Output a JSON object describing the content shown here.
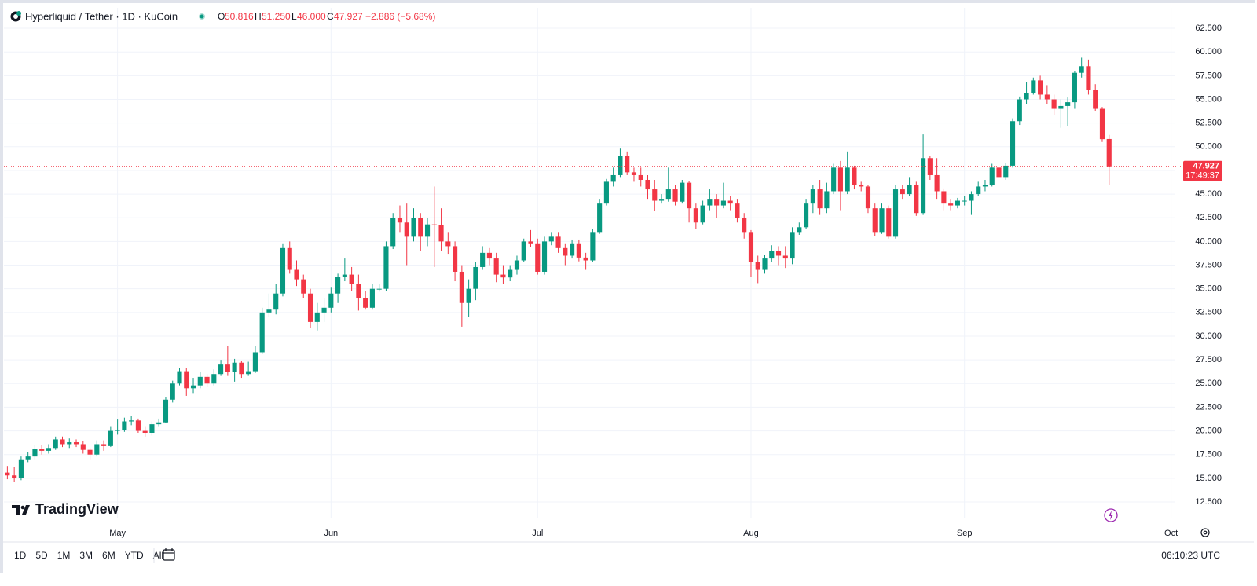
{
  "chart_data": {
    "type": "candlestick",
    "title": "Hyperliquid / Tether · 1D · KuCoin",
    "legend": {
      "o_key": "O",
      "o": "50.816",
      "h_key": "H",
      "h": "51.250",
      "l_key": "L",
      "l": "46.000",
      "c_key": "C",
      "c": "47.927",
      "change": "−2.886 (−5.68%)"
    },
    "up_color": "#089981",
    "down_color": "#f23645",
    "grid": true,
    "categories": [
      null,
      null,
      null,
      null,
      null,
      null,
      null,
      null,
      null,
      null,
      null,
      null,
      null,
      null,
      null,
      null,
      "May",
      null,
      null,
      null,
      null,
      null,
      null,
      null,
      null,
      null,
      null,
      null,
      null,
      null,
      null,
      null,
      null,
      null,
      null,
      null,
      null,
      null,
      null,
      null,
      null,
      null,
      null,
      null,
      null,
      null,
      null,
      "Jun",
      null,
      null,
      null,
      null,
      null,
      null,
      null,
      null,
      null,
      null,
      null,
      null,
      null,
      null,
      null,
      null,
      null,
      null,
      null,
      null,
      null,
      null,
      null,
      null,
      null,
      null,
      null,
      null,
      null,
      "Jul",
      null,
      null,
      null,
      null,
      null,
      null,
      null,
      null,
      null,
      null,
      null,
      null,
      null,
      null,
      null,
      null,
      null,
      null,
      null,
      null,
      null,
      null,
      null,
      null,
      null,
      null,
      null,
      null,
      null,
      null,
      "Aug",
      null,
      null,
      null,
      null,
      null,
      null,
      null,
      null,
      null,
      null,
      null,
      null,
      null,
      null,
      null,
      null,
      null,
      null,
      null,
      null,
      null,
      null,
      null,
      null,
      null,
      null,
      null,
      null,
      null,
      null,
      "Sep",
      null,
      null,
      null,
      null,
      null,
      null,
      null,
      null,
      null,
      null,
      null,
      null,
      null,
      null,
      null,
      null,
      null,
      null,
      null,
      null,
      null,
      null,
      null,
      null,
      null,
      null,
      null,
      null,
      null,
      "Oct"
    ],
    "series": [
      {
        "open": [
          15.6,
          15.3,
          15.0,
          17.0,
          17.3,
          18.1,
          17.9,
          18.2,
          19.1,
          18.6,
          18.8,
          18.6,
          18.0,
          17.5,
          18.6,
          18.4,
          20.0,
          20.1,
          21.0,
          21.1,
          20.0,
          19.8,
          20.7,
          20.9,
          23.3,
          25.0,
          26.3,
          24.5,
          24.8,
          25.7,
          25.0,
          26.0,
          27.0,
          26.2,
          27.2,
          26.0,
          26.3,
          28.3,
          32.5,
          32.8,
          34.5,
          39.3,
          37.0,
          36.0,
          34.5,
          31.5,
          32.5,
          33.0,
          34.5,
          36.3,
          36.5,
          35.5,
          34.0,
          33.0,
          35.0,
          35.0,
          39.5,
          42.5,
          42.0,
          40.5,
          42.5,
          40.5,
          41.8,
          41.7,
          40.0,
          39.5,
          36.8,
          33.5,
          35.0,
          37.3,
          38.8,
          38.2,
          36.5,
          36.2,
          37.0,
          38.0,
          40.0,
          39.8,
          36.8,
          40.0,
          40.5,
          39.3,
          38.5,
          39.8,
          38.3,
          38.0,
          41.0,
          44.0,
          46.3,
          47.0,
          49.0,
          47.3,
          47.0,
          46.5,
          45.5,
          44.3,
          44.5,
          45.5,
          44.2,
          46.2,
          43.5,
          42.0,
          43.8,
          44.5,
          43.8,
          44.3,
          44.0,
          42.5,
          41.0,
          37.8,
          37.0,
          38.2,
          39.0,
          38.5,
          38.2,
          41.0,
          41.5,
          44.0,
          45.5,
          43.5,
          45.3,
          47.8,
          45.3,
          47.8,
          46.0,
          45.8,
          43.5,
          41.0,
          43.5,
          40.5,
          45.5,
          45.0,
          46.0,
          43.0,
          48.8,
          47.0,
          45.3,
          44.0,
          43.8,
          44.3,
          44.3,
          45.0,
          45.8,
          46.0,
          47.8,
          46.8,
          48.0,
          52.7,
          55.0,
          55.7,
          57.0,
          55.5,
          55.0,
          54.0,
          54.3,
          54.7,
          57.8,
          58.5,
          56.0,
          54.0,
          50.816,
          null,
          null,
          null,
          null,
          null,
          null,
          null,
          null,
          null
        ],
        "high": [
          16.3,
          16.2,
          17.3,
          17.8,
          18.5,
          18.5,
          18.6,
          19.4,
          19.4,
          19.2,
          19.1,
          18.9,
          18.2,
          19.0,
          19.0,
          20.5,
          21.2,
          21.4,
          21.6,
          21.3,
          20.5,
          21.0,
          21.3,
          23.6,
          25.3,
          26.6,
          26.6,
          25.6,
          26.2,
          26.0,
          26.5,
          27.5,
          29.0,
          27.6,
          27.4,
          27.3,
          29.0,
          33.0,
          34.5,
          35.5,
          39.8,
          40.0,
          38.0,
          36.5,
          35.0,
          33.5,
          34.0,
          35.2,
          36.6,
          38.2,
          37.3,
          36.5,
          34.8,
          35.5,
          35.5,
          40.0,
          43.0,
          43.8,
          44.0,
          43.5,
          43.0,
          42.5,
          45.8,
          43.5,
          41.0,
          40.0,
          37.5,
          36.0,
          37.8,
          39.5,
          39.3,
          38.8,
          37.5,
          37.5,
          38.5,
          40.3,
          41.2,
          40.3,
          40.5,
          41.0,
          41.0,
          39.8,
          40.2,
          40.2,
          38.8,
          41.3,
          44.5,
          46.6,
          47.8,
          49.8,
          49.5,
          47.8,
          47.8,
          47.0,
          46.5,
          45.0,
          47.8,
          46.0,
          46.5,
          46.4,
          44.0,
          44.3,
          45.5,
          45.0,
          46.2,
          44.8,
          44.5,
          43.0,
          41.2,
          38.5,
          38.6,
          39.6,
          39.5,
          39.5,
          41.5,
          42.0,
          44.5,
          46.0,
          46.5,
          46.2,
          48.2,
          48.5,
          49.5,
          48.0,
          46.3,
          46.0,
          44.0,
          44.0,
          43.8,
          46.0,
          46.0,
          46.8,
          46.3,
          51.3,
          49.0,
          48.8,
          45.6,
          44.5,
          44.6,
          44.8,
          45.3,
          46.3,
          46.5,
          48.2,
          48.0,
          48.3,
          53.0,
          55.3,
          56.8,
          57.3,
          57.5,
          56.5,
          55.5,
          55.0,
          55.2,
          58.0,
          59.4,
          59.2,
          56.6,
          54.2,
          51.25,
          null,
          null,
          null,
          null,
          null,
          null,
          null,
          null,
          null
        ],
        "low": [
          14.9,
          14.6,
          14.8,
          16.7,
          17.0,
          17.5,
          17.6,
          18.0,
          18.3,
          18.2,
          18.3,
          17.6,
          17.0,
          17.3,
          17.9,
          18.3,
          19.6,
          19.9,
          20.6,
          19.8,
          19.4,
          19.5,
          20.5,
          20.8,
          23.0,
          24.8,
          23.7,
          24.0,
          24.5,
          24.6,
          24.8,
          25.8,
          25.8,
          25.2,
          25.6,
          25.8,
          26.1,
          28.1,
          32.0,
          32.3,
          34.2,
          36.6,
          35.3,
          34.0,
          30.9,
          30.6,
          31.5,
          32.5,
          33.5,
          35.8,
          34.8,
          32.7,
          32.8,
          32.8,
          34.7,
          34.8,
          39.2,
          41.0,
          37.5,
          40.0,
          39.0,
          39.5,
          37.3,
          39.0,
          38.7,
          35.8,
          31.0,
          32.0,
          33.8,
          37.0,
          37.5,
          35.7,
          35.5,
          35.8,
          36.5,
          37.8,
          39.4,
          36.5,
          36.5,
          39.6,
          38.8,
          37.5,
          38.2,
          37.9,
          37.0,
          37.8,
          40.8,
          43.8,
          45.8,
          46.8,
          47.0,
          46.3,
          45.8,
          44.5,
          43.2,
          44.0,
          44.2,
          43.8,
          44.0,
          42.0,
          41.3,
          41.8,
          43.3,
          42.5,
          43.5,
          43.3,
          42.0,
          40.3,
          36.3,
          35.6,
          36.6,
          37.8,
          37.5,
          37.2,
          37.6,
          40.7,
          41.3,
          43.0,
          42.8,
          43.0,
          45.0,
          43.3,
          45.0,
          45.5,
          45.3,
          43.0,
          40.6,
          40.8,
          40.3,
          40.3,
          44.5,
          44.8,
          42.7,
          42.8,
          46.5,
          44.5,
          43.3,
          43.3,
          43.5,
          43.8,
          42.8,
          44.8,
          45.3,
          45.8,
          46.3,
          46.5,
          47.8,
          52.3,
          54.5,
          55.5,
          55.0,
          54.5,
          53.3,
          52.0,
          52.2,
          54.0,
          57.3,
          55.5,
          53.8,
          50.5,
          46.0,
          null,
          null,
          null,
          null,
          null,
          null,
          null,
          null,
          null
        ],
        "close": [
          15.3,
          15.0,
          17.0,
          17.3,
          18.1,
          17.9,
          18.2,
          19.1,
          18.6,
          18.8,
          18.6,
          18.0,
          17.5,
          18.6,
          18.4,
          20.0,
          20.1,
          21.0,
          21.1,
          20.0,
          19.8,
          20.7,
          20.9,
          23.3,
          25.0,
          26.3,
          24.5,
          24.8,
          25.7,
          25.0,
          26.0,
          27.0,
          26.2,
          27.2,
          26.0,
          26.3,
          28.3,
          32.5,
          32.8,
          34.5,
          39.3,
          37.0,
          36.0,
          34.5,
          31.5,
          32.5,
          33.0,
          34.5,
          36.3,
          36.5,
          35.5,
          34.0,
          33.0,
          35.0,
          35.0,
          39.5,
          42.5,
          42.0,
          40.5,
          42.5,
          40.5,
          41.8,
          41.7,
          40.0,
          39.5,
          36.8,
          33.5,
          35.0,
          37.3,
          38.8,
          38.2,
          36.5,
          36.2,
          37.0,
          38.0,
          40.0,
          39.8,
          36.8,
          40.0,
          40.5,
          39.3,
          38.5,
          39.8,
          38.3,
          38.0,
          41.0,
          44.0,
          46.3,
          47.0,
          49.0,
          47.3,
          47.0,
          46.5,
          45.5,
          44.3,
          44.5,
          45.5,
          44.2,
          46.2,
          43.5,
          42.0,
          43.8,
          44.5,
          43.8,
          44.3,
          44.0,
          42.5,
          41.0,
          37.8,
          37.0,
          38.2,
          39.0,
          38.5,
          38.2,
          41.0,
          41.5,
          44.0,
          45.5,
          43.5,
          45.3,
          47.8,
          45.3,
          47.8,
          46.0,
          45.8,
          43.5,
          41.0,
          43.5,
          40.5,
          45.5,
          45.0,
          46.0,
          43.0,
          48.8,
          47.0,
          45.3,
          44.0,
          43.8,
          44.3,
          44.3,
          45.0,
          45.8,
          46.0,
          47.8,
          46.8,
          48.0,
          52.7,
          55.0,
          55.7,
          57.0,
          55.5,
          55.0,
          54.0,
          54.3,
          54.7,
          57.8,
          58.5,
          56.0,
          54.0,
          50.8,
          47.927,
          null,
          null,
          null,
          null,
          null,
          null,
          null,
          null,
          null
        ]
      }
    ],
    "ylim": [
      10.76,
      64.66
    ],
    "yticks": [
      {
        "value": 12.5,
        "label": "12.500"
      },
      {
        "value": 15,
        "label": "15.000"
      },
      {
        "value": 17.5,
        "label": "17.500"
      },
      {
        "value": 20,
        "label": "20.000"
      },
      {
        "value": 22.5,
        "label": "22.500"
      },
      {
        "value": 25,
        "label": "25.000"
      },
      {
        "value": 27.5,
        "label": "27.500"
      },
      {
        "value": 30,
        "label": "30.000"
      },
      {
        "value": 32.5,
        "label": "32.500"
      },
      {
        "value": 35,
        "label": "35.000"
      },
      {
        "value": 37.5,
        "label": "37.500"
      },
      {
        "value": 40,
        "label": "40.000"
      },
      {
        "value": 42.5,
        "label": "42.500"
      },
      {
        "value": 45,
        "label": "45.000"
      },
      {
        "value": 47.5,
        "label": "47.500"
      },
      {
        "value": 50,
        "label": "50.000"
      },
      {
        "value": 52.5,
        "label": "52.500"
      },
      {
        "value": 55,
        "label": "55.000"
      },
      {
        "value": 57.5,
        "label": "57.500"
      },
      {
        "value": 60,
        "label": "60.000"
      },
      {
        "value": 62.5,
        "label": "62.500"
      }
    ],
    "price_tag": {
      "value": 47.927,
      "countdown": "17:49:37"
    }
  },
  "ui": {
    "brand": "TradingView",
    "ranges": [
      "1D",
      "5D",
      "1M",
      "3M",
      "6M",
      "YTD",
      "All"
    ],
    "clock": "06:10:23 UTC"
  }
}
